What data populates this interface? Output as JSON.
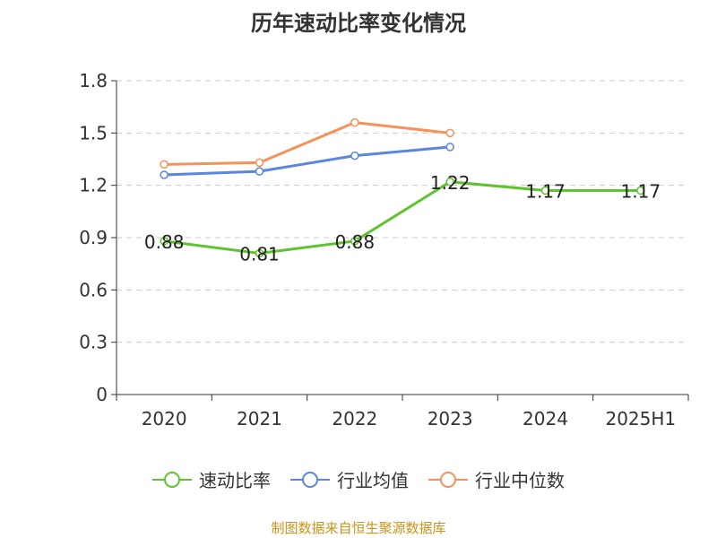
{
  "chart_data": {
    "type": "line",
    "title": "历年速动比率变化情况",
    "categories": [
      "2020",
      "2021",
      "2022",
      "2023",
      "2024",
      "2025H1"
    ],
    "ylim": [
      0,
      1.8
    ],
    "yticks": [
      "0",
      "0.3",
      "0.6",
      "0.9",
      "1.2",
      "1.5",
      "1.8"
    ],
    "grid": true,
    "legend_position": "bottom",
    "series": [
      {
        "name": "速动比率",
        "color": "#5fc22f",
        "values": [
          0.88,
          0.81,
          0.88,
          1.22,
          1.17,
          1.17
        ],
        "labels": [
          "0.88",
          "0.81",
          "0.88",
          "1.22",
          "1.17",
          "1.17"
        ]
      },
      {
        "name": "行业均值",
        "color": "#5a87dd",
        "values": [
          1.26,
          1.28,
          1.37,
          1.42,
          null,
          null
        ]
      },
      {
        "name": "行业中位数",
        "color": "#f5915a",
        "values": [
          1.32,
          1.33,
          1.56,
          1.5,
          null,
          null
        ]
      }
    ]
  },
  "source": "制图数据来自恒生聚源数据库"
}
